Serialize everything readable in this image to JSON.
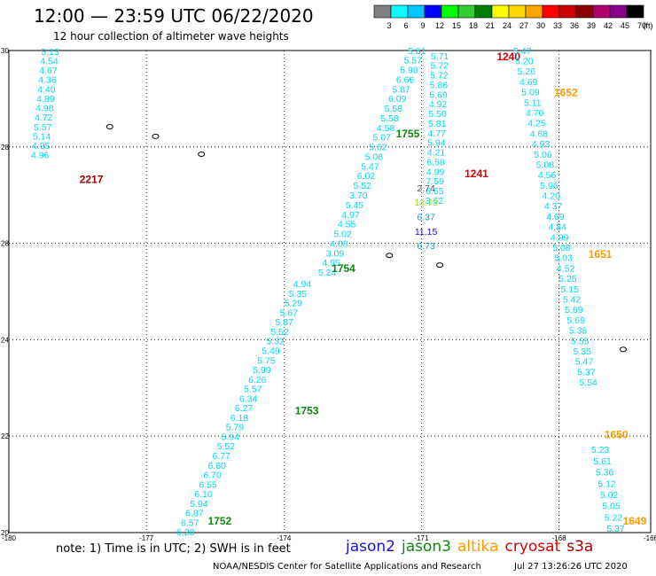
{
  "title": "12:00 — 23:59 UTC 06/22/2020",
  "subtitle": "12 hour collection of altimeter wave heights",
  "note": "note:  1) Time is in UTC;  2) SWH is in feet",
  "footer": "NOAA/NESDIS Center for Satellite Applications and Research",
  "footer_date": "Jul 27 13:26:26 UTC 2020",
  "satellites": [
    {
      "name": "jason2",
      "color": "#1515d0"
    },
    {
      "name": "jason3",
      "color": "#0a8a0a"
    },
    {
      "name": "altika",
      "color": "#ff9900"
    },
    {
      "name": "cryosat",
      "color": "#dd0000"
    },
    {
      "name": "s3a",
      "color": "#a00000"
    }
  ],
  "colorbar": {
    "unit": "(ft)",
    "ticks": [
      "3",
      "6",
      "9",
      "12",
      "15",
      "18",
      "21",
      "24",
      "27",
      "30",
      "33",
      "36",
      "39",
      "42",
      "45",
      "70"
    ],
    "colors": [
      "#808080",
      "#00ffff",
      "#00c8ff",
      "#0000ff",
      "#00ff00",
      "#32cd32",
      "#008000",
      "#ffff00",
      "#ffd700",
      "#ffa500",
      "#ff0000",
      "#cc0000",
      "#8b0000",
      "#b00070",
      "#8b008b",
      "#000000"
    ]
  },
  "chart_data": {
    "type": "scatter",
    "xlim": [
      -180,
      -166
    ],
    "ylim": [
      20,
      30
    ],
    "xticks": [
      "-180",
      "-177",
      "-174",
      "-171",
      "-168",
      "-166"
    ],
    "yticks": [
      "30",
      "28",
      "28",
      "24",
      "22",
      "20"
    ],
    "grid": true,
    "swh_color": "#00d8f0",
    "series": [
      {
        "name": "2217",
        "label_color": "#a00000",
        "lon_start": -179.1,
        "lat_start": 29.91,
        "lon_step": -0.02,
        "lat_step": -0.195,
        "values": [
          "5.13",
          "4.54",
          "4.67",
          "4.36",
          "4.40",
          "4.89",
          "4.98",
          "4.72",
          "5.57",
          "5.14",
          "4.95",
          "4.96"
        ],
        "time_label": {
          "text": "2217",
          "lon": -178.2,
          "lat": 27.25
        }
      },
      {
        "name": "1240",
        "label_color": "#dd0000",
        "lon_start": -170.6,
        "lat_start": 29.82,
        "lon_step": -0.008,
        "lat_step": -0.2,
        "values": [
          "5.71",
          "5.72",
          "5.72",
          "5.86",
          "5.69",
          "4.92",
          "5.50",
          "5.81",
          "4.77",
          "5.94",
          "4.21",
          "6.58",
          "4.99",
          "7.59",
          "6.65",
          "3.62"
        ],
        "time_label": {
          "text": "1240",
          "lon": -169.1,
          "lat": 29.8
        }
      },
      {
        "name": "1755",
        "label_color": "#0a8a0a",
        "lon_start": -171.1,
        "lat_start": 29.93,
        "lon_step": -0.085,
        "lat_step": -0.2,
        "values": [
          "5.81",
          "5.57",
          "5.98",
          "6.66",
          "5.87",
          "6.09",
          "5.58",
          "5.58",
          "4.58",
          "5.07",
          "5.62",
          "5.06",
          "5.47",
          "6.02",
          "5.52",
          "3.70",
          "5.45",
          "4.97",
          "4.55",
          "5.02",
          "4.08",
          "3.09",
          "4.95",
          "5.24"
        ],
        "time_label": {
          "text": "1755",
          "lon": -171.3,
          "lat": 28.2
        }
      },
      {
        "name": "1241",
        "label_color": "#dd0000",
        "lon_start": -170.9,
        "lat_start": 27.08,
        "lon_step": 0.0,
        "lat_step": -0.3,
        "values": [
          "2.74",
          "13.73",
          "6.37",
          "11.15",
          "6.73"
        ],
        "colors": [
          "#555555",
          "#99dd33",
          "#00aacc",
          "#1515d0",
          "#00aacc"
        ],
        "time_label": {
          "text": "1241",
          "lon": -169.8,
          "lat": 27.37
        }
      },
      {
        "name": "1754",
        "label_color": "#0a8a0a",
        "time_label": {
          "text": "1754",
          "lon": -172.7,
          "lat": 25.4
        }
      },
      {
        "name": "1753",
        "label_color": "#0a8a0a",
        "lon_start": -173.6,
        "lat_start": 25.09,
        "lon_step": -0.098,
        "lat_step": -0.198,
        "values": [
          "4.94",
          "5.35",
          "5.29",
          "5.67",
          "5.87",
          "5.52",
          "5.32",
          "5.49",
          "5.75",
          "5.99",
          "6.26",
          "5.57",
          "6.34",
          "6.27",
          "6.18",
          "5.79",
          "5.94",
          "5.52",
          "6.77",
          "6.80",
          "6.70",
          "6.55",
          "6.10",
          "5.94",
          "6.87",
          "6.57",
          "6.28"
        ],
        "time_label": {
          "text": "1753",
          "lon": -173.5,
          "lat": 22.45
        }
      },
      {
        "name": "1752",
        "label_color": "#0a8a0a",
        "time_label": {
          "text": "1752",
          "lon": -175.4,
          "lat": 20.17
        }
      },
      {
        "name": "1652",
        "label_color": "#ff9900",
        "lon_start": -168.8,
        "lat_start": 29.93,
        "lon_step": 0.045,
        "lat_step": -0.215,
        "values": [
          "5.47",
          "5.20",
          "5.26",
          "4.69",
          "5.09",
          "5.11",
          "4.70",
          "4.25",
          "4.68",
          "4.93",
          "5.06",
          "5.08",
          "4.56",
          "5.96",
          "4.20",
          "4.37",
          "4.69",
          "4.84",
          "4.99",
          "5.08",
          "5.03",
          "4.52",
          "5.25",
          "5.15",
          "5.42",
          "5.69",
          "5.69",
          "5.38",
          "5.55",
          "5.35",
          "5.47",
          "5.37",
          "5.54"
        ],
        "time_label": {
          "text": "1652",
          "lon": -167.85,
          "lat": 29.05
        }
      },
      {
        "name": "1651",
        "label_color": "#ff9900",
        "time_label": {
          "text": "1651",
          "lon": -167.1,
          "lat": 25.7
        }
      },
      {
        "name": "1650",
        "label_color": "#ff9900",
        "lon_start": -167.1,
        "lat_start": 21.65,
        "lon_step": 0.048,
        "lat_step": -0.233,
        "values": [
          "5.23",
          "5.61",
          "5.36",
          "5.12",
          "5.02",
          "5.05",
          "5.22",
          "5.37"
        ],
        "time_label": {
          "text": "1650",
          "lon": -166.75,
          "lat": 21.96
        }
      },
      {
        "name": "1649",
        "label_color": "#ff9900",
        "time_label": {
          "text": "1649",
          "lon": -166.35,
          "lat": 20.17
        }
      }
    ],
    "islands": [
      {
        "lon": -177.8,
        "lat": 28.42,
        "icon": "atoll-icon"
      },
      {
        "lon": -176.8,
        "lat": 28.22,
        "icon": "atoll-icon"
      },
      {
        "lon": -175.8,
        "lat": 27.85,
        "icon": "atoll-icon"
      },
      {
        "lon": -171.7,
        "lat": 25.75,
        "icon": "atoll-icon"
      },
      {
        "lon": -170.6,
        "lat": 25.55,
        "icon": "atoll-icon"
      },
      {
        "lon": -166.6,
        "lat": 23.8,
        "icon": "atoll-icon"
      }
    ]
  }
}
